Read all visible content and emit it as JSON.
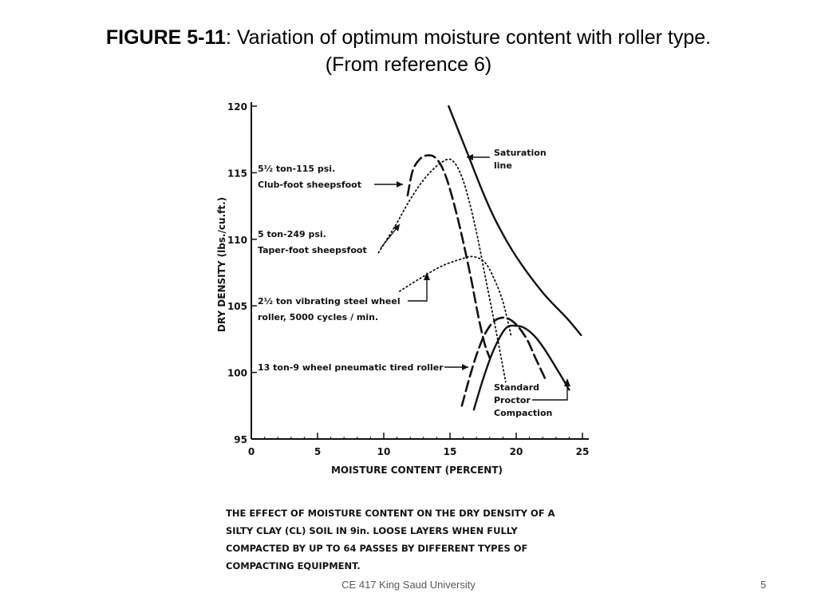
{
  "slide": {
    "figure_label": "FIGURE 5-11",
    "title_rest": ": Variation of optimum moisture content with roller type.",
    "subtitle": "(From reference 6)",
    "footer": "CE 417 King Saud University",
    "page_number": "5"
  },
  "chart_data": {
    "type": "line",
    "xlabel": "MOISTURE CONTENT (PERCENT)",
    "ylabel": "DRY DENSITY (lbs./cu.ft.)",
    "xlim": [
      0,
      25
    ],
    "ylim": [
      95,
      120
    ],
    "xticks": [
      "0",
      "5",
      "10",
      "15",
      "20",
      "25"
    ],
    "yticks": [
      "95",
      "100",
      "105",
      "110",
      "115",
      "120"
    ],
    "series": [
      {
        "name": "Saturation line",
        "style": "solid-thick",
        "x": [
          14.9,
          15.5,
          16.5,
          17.5,
          18.5,
          20,
          22,
          23.8,
          24.9
        ],
        "y": [
          120,
          118.5,
          116,
          113.5,
          111.3,
          108.7,
          106,
          104.1,
          102.8
        ]
      },
      {
        "name": "5½ ton-115 psi. Club-foot sheepsfoot",
        "style": "long-dash",
        "x": [
          11.8,
          12.2,
          12.8,
          13.3,
          13.8,
          14.3,
          14.8,
          15.4,
          16,
          16.6,
          17.1,
          17.6,
          18
        ],
        "y": [
          113.3,
          115.2,
          116.1,
          116.3,
          116.2,
          115.6,
          114.4,
          112.3,
          109.8,
          107,
          104.4,
          102.2,
          101.1
        ]
      },
      {
        "name": "5 ton-249 psi. Taper-foot sheepsfoot",
        "style": "dotted",
        "x": [
          9.6,
          10.8,
          12,
          13.2,
          14.4,
          15.2,
          16,
          16.9,
          17.7,
          18.5,
          19.2
        ],
        "y": [
          109,
          110.9,
          113,
          114.7,
          115.8,
          115.9,
          114.4,
          111,
          107,
          103,
          99.3
        ]
      },
      {
        "name": "2½ ton vibrating steel wheel roller, 5000 cycles / min.",
        "style": "dotted",
        "x": [
          11.2,
          12.8,
          14.4,
          15.8,
          16.7,
          17.6,
          18.3,
          19,
          19.6
        ],
        "y": [
          106.1,
          107.1,
          108,
          108.5,
          108.7,
          108.3,
          107.1,
          105.3,
          102.8
        ]
      },
      {
        "name": "13 ton-9 wheel pneumatic tired roller",
        "style": "long-dash",
        "x": [
          15.9,
          16.5,
          17.1,
          17.7,
          18.4,
          19.2,
          20,
          20.8,
          21.4,
          22.2
        ],
        "y": [
          97.5,
          99.7,
          101.6,
          103,
          103.9,
          104.1,
          103.6,
          102.5,
          101.2,
          99.5
        ]
      },
      {
        "name": "Standard Proctor Compaction",
        "style": "solid-thick",
        "x": [
          16.8,
          17.5,
          18.3,
          19.2,
          20,
          20.7,
          21.5,
          22.3,
          23.1,
          24
        ],
        "y": [
          97.2,
          99.5,
          101.7,
          103.3,
          103.5,
          103.3,
          102.6,
          101.5,
          100.2,
          98.7
        ]
      }
    ],
    "annotations": [
      {
        "line1": "Saturation",
        "line2": "line"
      },
      {
        "line1": "5½ ton-115 psi.",
        "line2": "Club-foot sheepsfoot"
      },
      {
        "line1": "5 ton-249 psi.",
        "line2": "Taper-foot sheepsfoot"
      },
      {
        "line1": "2½ ton vibrating steel wheel",
        "line2": "roller, 5000 cycles / min."
      },
      {
        "line1": "13 ton-9 wheel pneumatic tired roller",
        "line2": ""
      },
      {
        "line1": "Standard",
        "line2": "Proctor",
        "line3": "Compaction"
      }
    ],
    "caption": [
      "THE EFFECT OF MOISTURE CONTENT ON THE DRY DENSITY OF A",
      "SILTY CLAY (CL) SOIL IN 9in. LOOSE LAYERS WHEN FULLY",
      "COMPACTED BY UP TO 64 PASSES BY DIFFERENT TYPES OF",
      "COMPACTING EQUIPMENT."
    ]
  }
}
